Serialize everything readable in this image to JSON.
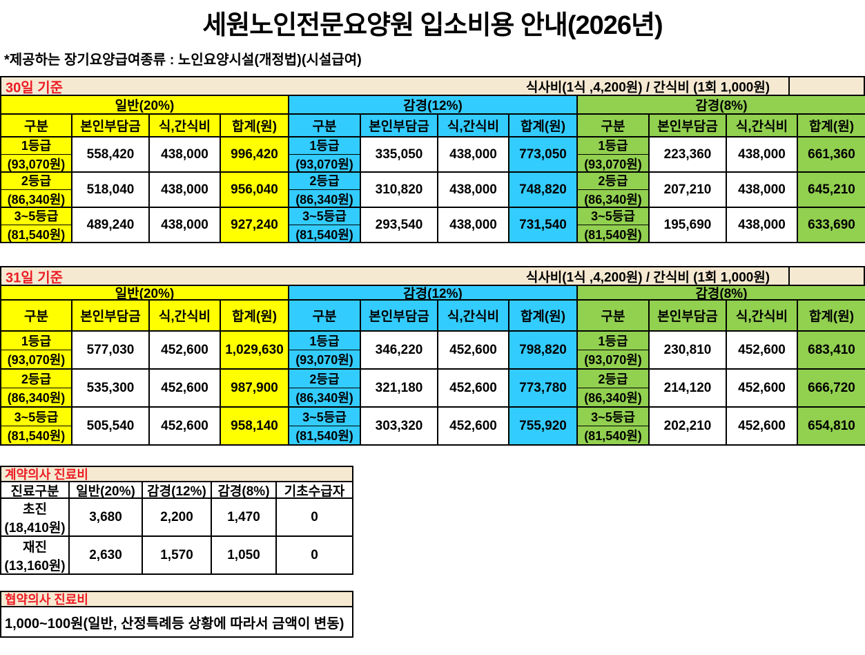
{
  "page": {
    "title": "세원노인전문요양원 입소비용 안내(2026년)",
    "subtitle": "*제공하는 장기요양급여종류 : 노인요양시설(개정법)(시설급여)"
  },
  "colors": {
    "general_yellow": "#FFFF00",
    "reduced12_cyan": "#33CCFF",
    "reduced8_green": "#92D050",
    "band_cream": "#F6E9D2",
    "accent_red": "#EC1C24",
    "border_black": "#000000"
  },
  "cost_tables": [
    {
      "period": "30일 기준",
      "meal_note": "식사비(1식 ,4,200원) / 간식비 (1회 1,000원)",
      "groups": [
        {
          "name": "일반(20%)",
          "color": "yellow"
        },
        {
          "name": "감경(12%)",
          "color": "cyan"
        },
        {
          "name": "감경(8%)",
          "color": "green"
        }
      ],
      "col_headers": [
        "구분",
        "본인부담금",
        "식,간식비",
        "합계(원)"
      ],
      "rows": [
        {
          "grade": "1등급",
          "grade_sub": "(93,070원)",
          "amounts": [
            [
              "558,420",
              "438,000",
              "996,420"
            ],
            [
              "335,050",
              "438,000",
              "773,050"
            ],
            [
              "223,360",
              "438,000",
              "661,360"
            ]
          ]
        },
        {
          "grade": "2등급",
          "grade_sub": "(86,340원)",
          "amounts": [
            [
              "518,040",
              "438,000",
              "956,040"
            ],
            [
              "310,820",
              "438,000",
              "748,820"
            ],
            [
              "207,210",
              "438,000",
              "645,210"
            ]
          ]
        },
        {
          "grade": "3~5등급",
          "grade_sub": "(81,540원)",
          "amounts": [
            [
              "489,240",
              "438,000",
              "927,240"
            ],
            [
              "293,540",
              "438,000",
              "731,540"
            ],
            [
              "195,690",
              "438,000",
              "633,690"
            ]
          ]
        }
      ]
    },
    {
      "period": "31일 기준",
      "meal_note": "식사비(1식 ,4,200원) / 간식비 (1회 1,000원)",
      "groups": [
        {
          "name": "일반(20%)",
          "color": "yellow"
        },
        {
          "name": "감경(12%)",
          "color": "cyan"
        },
        {
          "name": "감경(8%)",
          "color": "green"
        }
      ],
      "col_headers": [
        "구분",
        "본인부담금",
        "식,간식비",
        "합계(원)"
      ],
      "rows": [
        {
          "grade": "1등급",
          "grade_sub": "(93,070원)",
          "amounts": [
            [
              "577,030",
              "452,600",
              "1,029,630"
            ],
            [
              "346,220",
              "452,600",
              "798,820"
            ],
            [
              "230,810",
              "452,600",
              "683,410"
            ]
          ]
        },
        {
          "grade": "2등급",
          "grade_sub": "(86,340원)",
          "amounts": [
            [
              "535,300",
              "452,600",
              "987,900"
            ],
            [
              "321,180",
              "452,600",
              "773,780"
            ],
            [
              "214,120",
              "452,600",
              "666,720"
            ]
          ]
        },
        {
          "grade": "3~5등급",
          "grade_sub": "(81,540원)",
          "amounts": [
            [
              "505,540",
              "452,600",
              "958,140"
            ],
            [
              "303,320",
              "452,600",
              "755,920"
            ],
            [
              "202,210",
              "452,600",
              "654,810"
            ]
          ]
        }
      ]
    }
  ],
  "contract_doctor_fee": {
    "title": "계약의사 진료비",
    "col_headers": [
      "진료구분",
      "일반(20%)",
      "감경(12%)",
      "감경(8%)",
      "기초수급자"
    ],
    "rows": [
      {
        "label": "초진",
        "label_sub": "(18,410원)",
        "values": [
          "3,680",
          "2,200",
          "1,470",
          "0"
        ]
      },
      {
        "label": "재진",
        "label_sub": "(13,160원)",
        "values": [
          "2,630",
          "1,570",
          "1,050",
          "0"
        ]
      }
    ]
  },
  "partner_doctor_fee": {
    "title": "협약의사 진료비",
    "note": "1,000~100원(일반, 산정특례등 상황에 따라서 금액이 변동)"
  }
}
